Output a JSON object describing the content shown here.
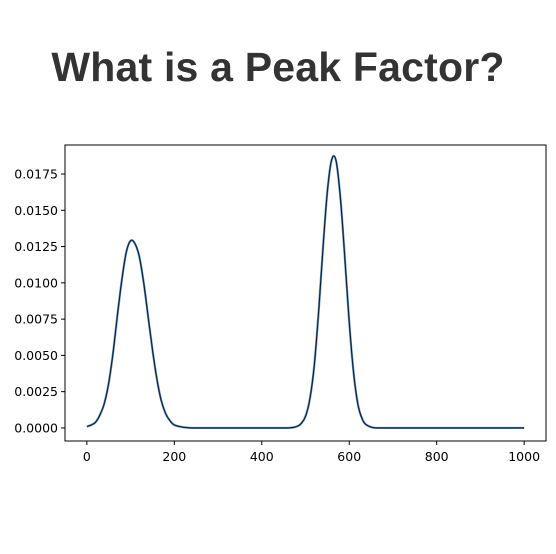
{
  "page": {
    "title": "What is a Peak Factor?"
  },
  "colors": {
    "title": "#333333",
    "line": "#0f1f2e",
    "line_shadow": "#3a7bb8",
    "axis": "#000000"
  },
  "chart_data": {
    "type": "line",
    "title": "",
    "xlabel": "",
    "ylabel": "",
    "xlim": [
      -50,
      1050
    ],
    "ylim": [
      -0.0009,
      0.0195
    ],
    "grid": false,
    "legend": "none",
    "x_ticks": [
      {
        "value": 0,
        "label": "0"
      },
      {
        "value": 200,
        "label": "200"
      },
      {
        "value": 400,
        "label": "400"
      },
      {
        "value": 600,
        "label": "600"
      },
      {
        "value": 800,
        "label": "800"
      },
      {
        "value": 1000,
        "label": "1000"
      }
    ],
    "y_ticks": [
      {
        "value": 0,
        "label": "0.0000"
      },
      {
        "value": 0.0025,
        "label": "0.0025"
      },
      {
        "value": 0.005,
        "label": "0.0050"
      },
      {
        "value": 0.0075,
        "label": "0.0075"
      },
      {
        "value": 0.01,
        "label": "0.0100"
      },
      {
        "value": 0.0125,
        "label": "0.0125"
      },
      {
        "value": 0.015,
        "label": "0.0150"
      },
      {
        "value": 0.0175,
        "label": "0.0175"
      }
    ],
    "series": [
      {
        "x": [
          0,
          10,
          20,
          30,
          40,
          50,
          60,
          70,
          80,
          90,
          100,
          110,
          120,
          130,
          140,
          150,
          160,
          170,
          180,
          190,
          200,
          220,
          240,
          260,
          300,
          400,
          460,
          480,
          490,
          500,
          510,
          520,
          530,
          540,
          550,
          560,
          570,
          580,
          590,
          600,
          610,
          620,
          630,
          640,
          660,
          700,
          800,
          900,
          1000
        ],
        "y": [
          0.0001,
          0.0002,
          0.0004,
          0.0009,
          0.0017,
          0.0031,
          0.0052,
          0.0078,
          0.0102,
          0.0121,
          0.0129,
          0.0127,
          0.0118,
          0.01,
          0.0077,
          0.0054,
          0.0034,
          0.0019,
          0.001,
          0.0005,
          0.0002,
          5e-05,
          0.0,
          0.0,
          0.0,
          0.0,
          0.0,
          0.0001,
          0.0003,
          0.0008,
          0.002,
          0.0043,
          0.008,
          0.0124,
          0.0163,
          0.0185,
          0.0184,
          0.0158,
          0.0117,
          0.0073,
          0.0038,
          0.0016,
          0.0006,
          0.0002,
          0.0,
          0.0,
          0.0,
          0.0,
          0.0
        ]
      }
    ]
  }
}
